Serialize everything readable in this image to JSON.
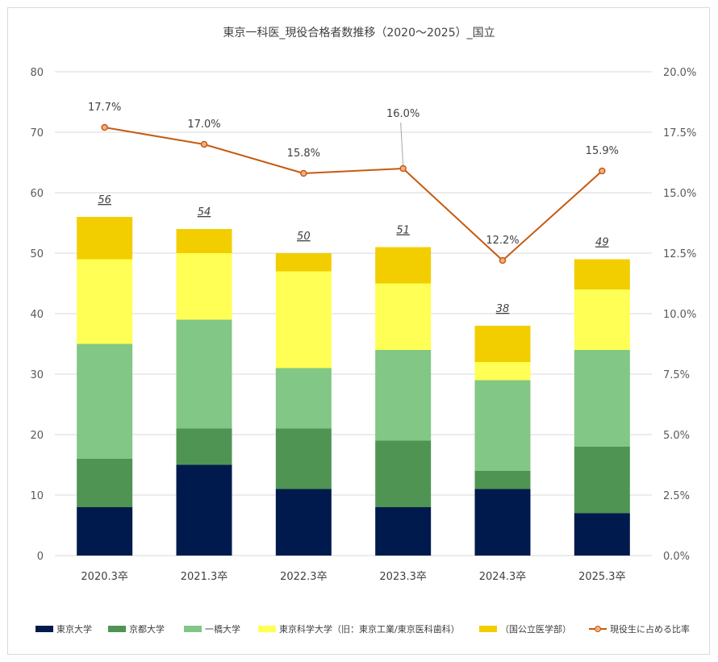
{
  "chart_data": {
    "type": "bar",
    "stacked": true,
    "title": "東京一科医_現役合格者数推移（2020～2025）_国立",
    "categories": [
      "2020.3卒",
      "2021.3卒",
      "2022.3卒",
      "2023.3卒",
      "2024.3卒",
      "2025.3卒"
    ],
    "series": [
      {
        "name": "東京大学",
        "values": [
          8,
          15,
          11,
          8,
          11,
          7
        ],
        "color": "#001a4d"
      },
      {
        "name": "京都大学",
        "values": [
          8,
          6,
          10,
          11,
          3,
          11
        ],
        "color": "#4f9453"
      },
      {
        "name": "一橋大学",
        "values": [
          19,
          18,
          10,
          15,
          15,
          16
        ],
        "color": "#82c785"
      },
      {
        "name": "東京科学大学（旧：東京工業/東京医科歯科）",
        "values": [
          14,
          11,
          16,
          11,
          3,
          10
        ],
        "color": "#ffff55"
      },
      {
        "name": "（国公立医学部）",
        "values": [
          7,
          4,
          3,
          6,
          6,
          5
        ],
        "color": "#f2ce00"
      }
    ],
    "totals": [
      "56",
      "54",
      "50",
      "51",
      "38",
      "49"
    ],
    "line_series": {
      "name": "現役生に占める比率",
      "axis": "right",
      "values": [
        17.7,
        17.0,
        15.8,
        16.0,
        12.2,
        15.9
      ],
      "labels": [
        "17.7%",
        "17.0%",
        "15.8%",
        "16.0%",
        "12.2%",
        "15.9%"
      ],
      "color": "#c55a11",
      "marker_fill": "#f4b183"
    },
    "y_left": {
      "min": 0,
      "max": 80,
      "ticks": [
        "0",
        "10",
        "20",
        "30",
        "40",
        "50",
        "60",
        "70",
        "80"
      ]
    },
    "y_right": {
      "min": 0,
      "max": 20,
      "ticks": [
        "0.0%",
        "2.5%",
        "5.0%",
        "7.5%",
        "10.0%",
        "12.5%",
        "15.0%",
        "17.5%",
        "20.0%"
      ]
    },
    "grid": true,
    "legend_position": "bottom"
  }
}
